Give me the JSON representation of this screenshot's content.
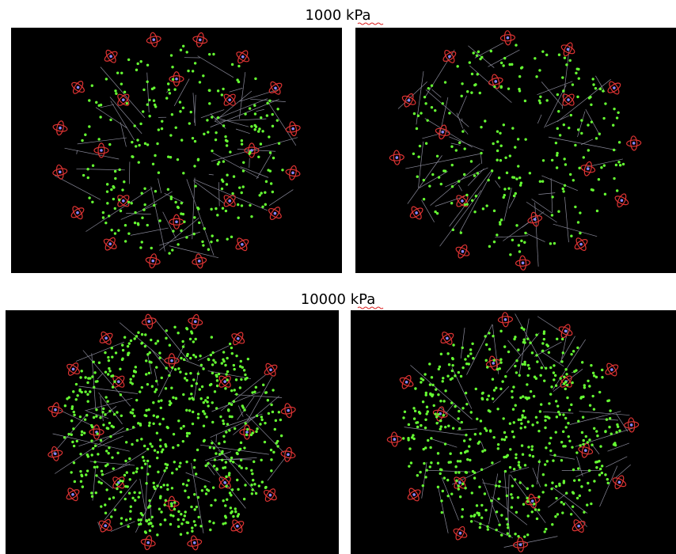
{
  "sections": [
    {
      "label": "1000 kPa"
    },
    {
      "label": "10000 kPa"
    }
  ]
}
